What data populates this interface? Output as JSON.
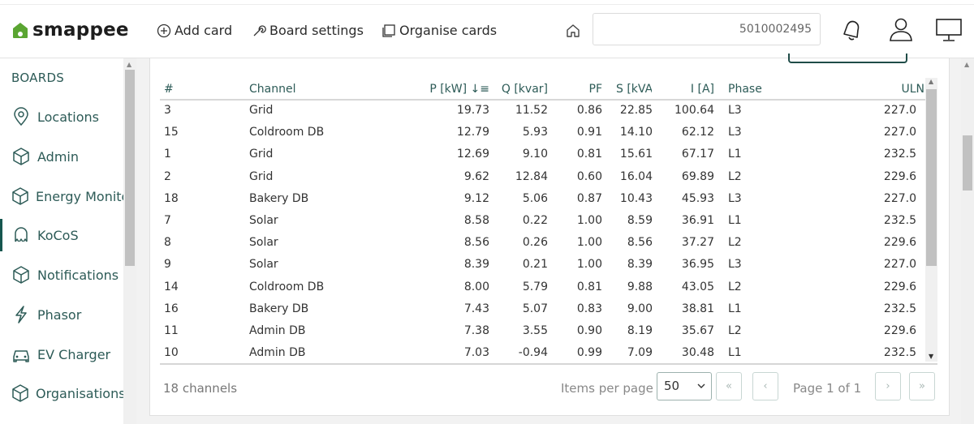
{
  "brand": {
    "name": "smappee",
    "color": "#5aa532"
  },
  "header": {
    "add_card": "Add card",
    "board_settings": "Board settings",
    "organise_cards": "Organise cards",
    "search_value": "5010002495"
  },
  "sidebar": {
    "title": "BOARDS",
    "items": [
      {
        "label": "Locations",
        "icon": "location-pin-icon"
      },
      {
        "label": "Admin",
        "icon": "cube-icon"
      },
      {
        "label": "Energy Monito",
        "icon": "cube-icon"
      },
      {
        "label": "KoCoS",
        "icon": "kocos-icon",
        "active": true
      },
      {
        "label": "Notifications",
        "icon": "cube-icon"
      },
      {
        "label": "Phasor",
        "icon": "lightning-icon"
      },
      {
        "label": "EV Charger",
        "icon": "car-icon"
      },
      {
        "label": "Organisations",
        "icon": "cube-icon"
      }
    ]
  },
  "table": {
    "columns": [
      "#",
      "Channel",
      "P [kW] ↓≡",
      "Q [kvar]",
      "PF",
      "S [kVA",
      "I [A]",
      "Phase",
      "ULN"
    ],
    "rows": [
      [
        "3",
        "Grid",
        "19.73",
        "11.52",
        "0.86",
        "22.85",
        "100.64",
        "L3",
        "227.0"
      ],
      [
        "15",
        "Coldroom DB",
        "12.79",
        "5.93",
        "0.91",
        "14.10",
        "62.12",
        "L3",
        "227.0"
      ],
      [
        "1",
        "Grid",
        "12.69",
        "9.10",
        "0.81",
        "15.61",
        "67.17",
        "L1",
        "232.5"
      ],
      [
        "2",
        "Grid",
        "9.62",
        "12.84",
        "0.60",
        "16.04",
        "69.89",
        "L2",
        "229.6"
      ],
      [
        "18",
        "Bakery DB",
        "9.12",
        "5.06",
        "0.87",
        "10.43",
        "45.93",
        "L3",
        "227.0"
      ],
      [
        "7",
        "Solar",
        "8.58",
        "0.22",
        "1.00",
        "8.59",
        "36.91",
        "L1",
        "232.5"
      ],
      [
        "8",
        "Solar",
        "8.56",
        "0.26",
        "1.00",
        "8.56",
        "37.27",
        "L2",
        "229.6"
      ],
      [
        "9",
        "Solar",
        "8.39",
        "0.21",
        "1.00",
        "8.39",
        "36.95",
        "L3",
        "227.0"
      ],
      [
        "14",
        "Coldroom DB",
        "8.00",
        "5.79",
        "0.81",
        "9.88",
        "43.05",
        "L2",
        "229.6"
      ],
      [
        "16",
        "Bakery DB",
        "7.43",
        "5.07",
        "0.83",
        "9.00",
        "38.81",
        "L1",
        "232.5"
      ],
      [
        "11",
        "Admin DB",
        "7.38",
        "3.55",
        "0.90",
        "8.19",
        "35.67",
        "L2",
        "229.6"
      ],
      [
        "10",
        "Admin DB",
        "7.03",
        "-0.94",
        "0.99",
        "7.09",
        "30.48",
        "L1",
        "232.5"
      ]
    ]
  },
  "footer": {
    "count": "18 channels",
    "items_per_page_label": "Items per page",
    "items_per_page_value": "50",
    "page_info": "Page 1 of 1",
    "first": "«",
    "prev": "‹",
    "next": "›",
    "last": "»"
  }
}
